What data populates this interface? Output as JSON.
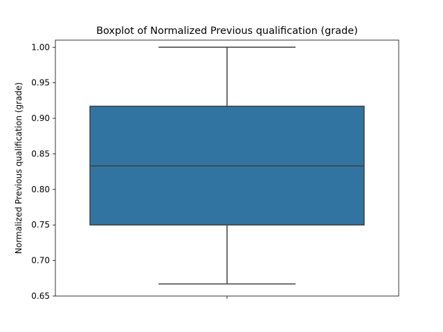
{
  "chart_data": {
    "type": "box",
    "title": "Boxplot of Normalized Previous qualification (grade)",
    "xlabel": "",
    "ylabel": "Normalized Previous qualification (grade)",
    "ylim": [
      0.65,
      1.01
    ],
    "yticks": [
      "0.65",
      "0.70",
      "0.75",
      "0.80",
      "0.85",
      "0.90",
      "0.95",
      "1.00"
    ],
    "grid": false,
    "legend": "none",
    "box": {
      "whisker_low": 0.667,
      "q1": 0.75,
      "median": 0.833,
      "q3": 0.917,
      "whisker_high": 1.0
    },
    "colors": {
      "box_fill": "#3274a1",
      "box_edge": "#3f3f3f",
      "axes": "#000000"
    }
  }
}
